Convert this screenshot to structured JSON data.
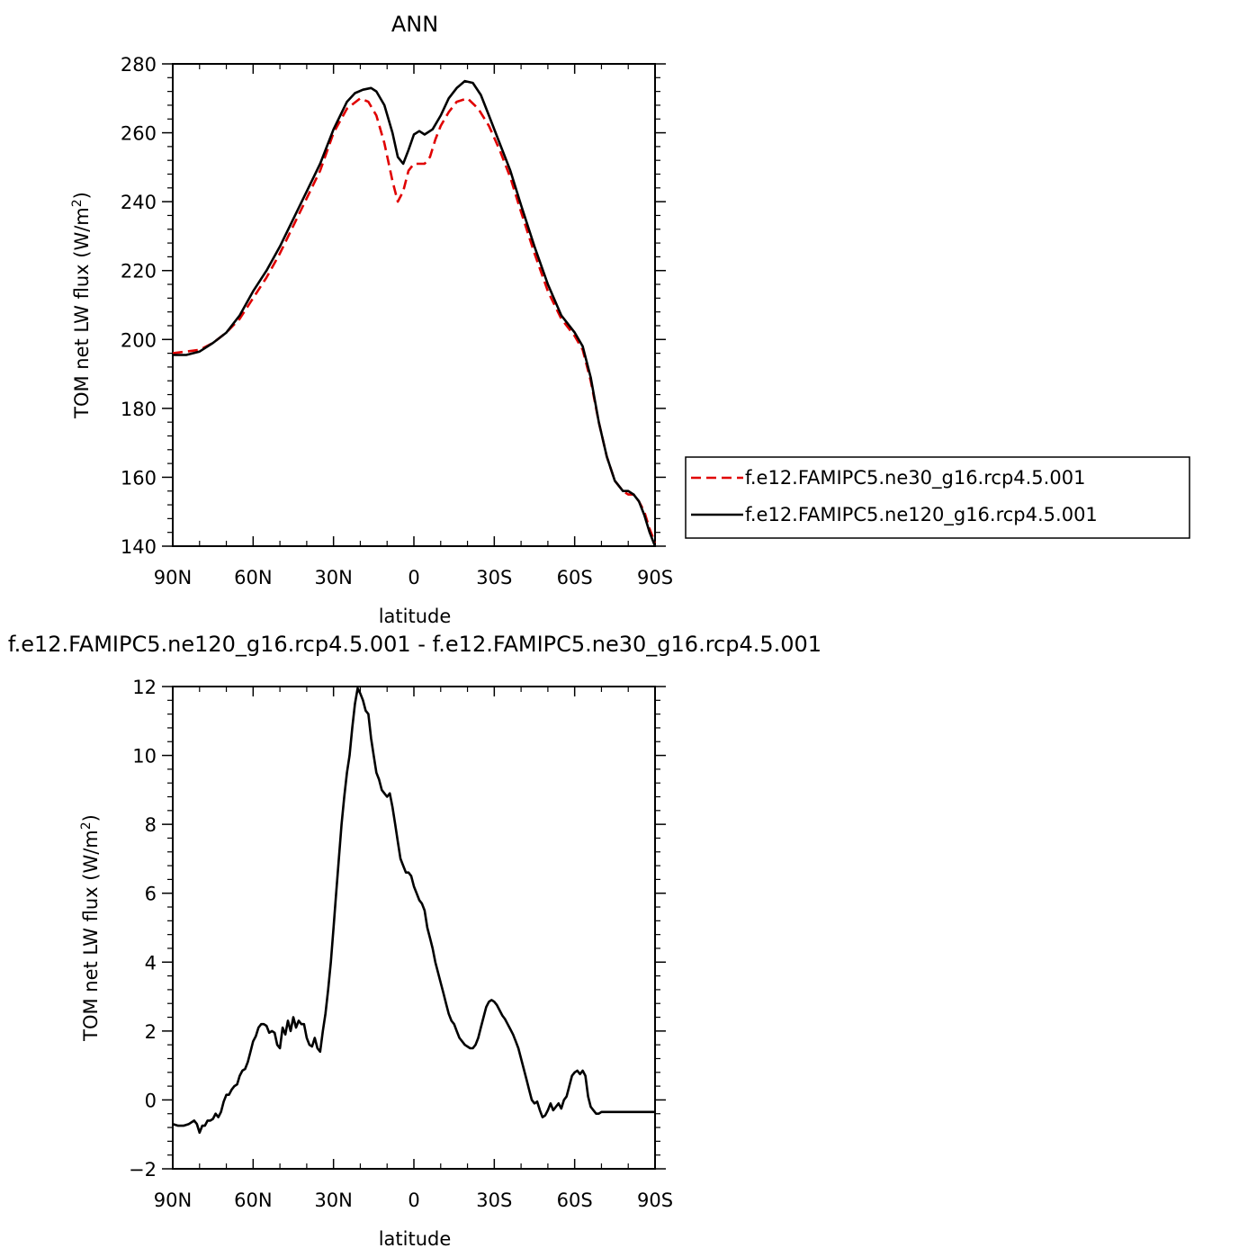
{
  "chart_data": [
    {
      "type": "line",
      "title": "ANN",
      "xlabel": "latitude",
      "ylabel_main": "TOM net LW flux (W/m",
      "ylabel_sup": "2",
      "ylabel_close": ")",
      "xlim": [
        90,
        -90
      ],
      "ylim": [
        140,
        280
      ],
      "x_ticks": [
        90,
        60,
        30,
        0,
        -30,
        -60,
        -90
      ],
      "x_tick_labels": [
        "90N",
        "60N",
        "30N",
        "0",
        "30S",
        "60S",
        "90S"
      ],
      "y_ticks": [
        140,
        160,
        180,
        200,
        220,
        240,
        260,
        280
      ],
      "y_tick_labels": [
        "140",
        "160",
        "180",
        "200",
        "220",
        "240",
        "260",
        "280"
      ],
      "grid": false,
      "legend_position": "right",
      "series": [
        {
          "name": "f.e12.FAMIPC5.ne30_g16.rcp4.5.001",
          "color": "#e00000",
          "dash": "dashed",
          "x": [
            90,
            85,
            80,
            75,
            70,
            65,
            60,
            55,
            50,
            45,
            40,
            35,
            30,
            25,
            20,
            17,
            14,
            11,
            8,
            6,
            4,
            2,
            0,
            -2,
            -4,
            -6,
            -8,
            -10,
            -13,
            -16,
            -20,
            -24,
            -28,
            -32,
            -36,
            -40,
            -45,
            -50,
            -55,
            -60,
            -63,
            -66,
            -69,
            -72,
            -75,
            -78,
            -80,
            -82,
            -84,
            -86,
            -88,
            -90
          ],
          "y": [
            196,
            196.5,
            197,
            199,
            202,
            206,
            212,
            218,
            225,
            233,
            241,
            249,
            260,
            267,
            270,
            269,
            265,
            257,
            246,
            240,
            243,
            249,
            251,
            251,
            251,
            253,
            258,
            262,
            266,
            269,
            270,
            267,
            262,
            255,
            247,
            237,
            225,
            214,
            206,
            201,
            197,
            188,
            176,
            166,
            159,
            156,
            155,
            155,
            153,
            150,
            145,
            141
          ]
        },
        {
          "name": "f.e12.FAMIPC5.ne120_g16.rcp4.5.001",
          "color": "#000000",
          "dash": "solid",
          "x": [
            90,
            85,
            80,
            75,
            70,
            65,
            60,
            55,
            50,
            45,
            40,
            35,
            30,
            25,
            22,
            19,
            16,
            14,
            11,
            8,
            6,
            4,
            2,
            0,
            -2,
            -4,
            -7,
            -10,
            -13,
            -16,
            -19,
            -22,
            -25,
            -28,
            -32,
            -36,
            -40,
            -45,
            -50,
            -55,
            -60,
            -63,
            -66,
            -69,
            -72,
            -75,
            -78,
            -80,
            -82,
            -84,
            -86,
            -88,
            -90
          ],
          "y": [
            195.5,
            195.5,
            196.5,
            199,
            202,
            207,
            214,
            220,
            227,
            235,
            243,
            251,
            261,
            269,
            271.5,
            272.5,
            273,
            272,
            268,
            260,
            253,
            251,
            255,
            259.5,
            260.5,
            259.5,
            261,
            265,
            270,
            273,
            275,
            274.5,
            271,
            265,
            257,
            249,
            239,
            227,
            216,
            207,
            202,
            198,
            189,
            176,
            166,
            159,
            156,
            156,
            155,
            153,
            149,
            144,
            140
          ]
        }
      ]
    },
    {
      "type": "line",
      "title": "f.e12.FAMIPC5.ne120_g16.rcp4.5.001 - f.e12.FAMIPC5.ne30_g16.rcp4.5.001",
      "xlabel": "latitude",
      "ylabel_main": "TOM net LW flux (W/m",
      "ylabel_sup": "2",
      "ylabel_close": ")",
      "xlim": [
        90,
        -90
      ],
      "ylim": [
        -2,
        12
      ],
      "x_ticks": [
        90,
        60,
        30,
        0,
        -30,
        -60,
        -90
      ],
      "x_tick_labels": [
        "90N",
        "60N",
        "30N",
        "0",
        "30S",
        "60S",
        "90S"
      ],
      "y_ticks": [
        -2,
        0,
        2,
        4,
        6,
        8,
        10,
        12
      ],
      "y_tick_labels": [
        "−2",
        "0",
        "2",
        "4",
        "6",
        "8",
        "10",
        "12"
      ],
      "grid": false,
      "series": [
        {
          "color": "#000000",
          "dash": "solid",
          "x": [
            90,
            88,
            86,
            84,
            82,
            81,
            80,
            79,
            78,
            77,
            76,
            75,
            74,
            73,
            72,
            71,
            70,
            69,
            68,
            67,
            66,
            65,
            64,
            63,
            62,
            61,
            60,
            59,
            58,
            57,
            56,
            55,
            54,
            53,
            52,
            51,
            50,
            49,
            48,
            47,
            46,
            45,
            44,
            43,
            42,
            41,
            40,
            39,
            38,
            37,
            36,
            35,
            34,
            33,
            32,
            31,
            30,
            29,
            28,
            27,
            26,
            25,
            24,
            23,
            22,
            21,
            20,
            19,
            18,
            17,
            16,
            15,
            14,
            13,
            12,
            11,
            10,
            9,
            8,
            7,
            6,
            5,
            4,
            3,
            2,
            1,
            0,
            -1,
            -2,
            -3,
            -4,
            -5,
            -6,
            -7,
            -8,
            -9,
            -10,
            -11,
            -12,
            -13,
            -14,
            -15,
            -16,
            -17,
            -18,
            -19,
            -20,
            -21,
            -22,
            -23,
            -24,
            -25,
            -26,
            -27,
            -28,
            -29,
            -30,
            -31,
            -32,
            -33,
            -34,
            -35,
            -36,
            -37,
            -38,
            -39,
            -40,
            -41,
            -42,
            -43,
            -44,
            -45,
            -46,
            -47,
            -48,
            -49,
            -50,
            -51,
            -52,
            -53,
            -54,
            -55,
            -56,
            -57,
            -58,
            -59,
            -60,
            -61,
            -62,
            -63,
            -64,
            -65,
            -66,
            -67,
            -68,
            -69,
            -70,
            -71,
            -72,
            -73,
            -74,
            -75,
            -76,
            -77,
            -78,
            -79,
            -80,
            -81,
            -82,
            -83,
            -84,
            -85,
            -86,
            -87,
            -88,
            -89,
            -90
          ],
          "y": [
            -0.7,
            -0.75,
            -0.75,
            -0.7,
            -0.6,
            -0.7,
            -0.95,
            -0.75,
            -0.75,
            -0.6,
            -0.6,
            -0.55,
            -0.4,
            -0.5,
            -0.35,
            -0.05,
            0.15,
            0.15,
            0.3,
            0.4,
            0.45,
            0.7,
            0.85,
            0.9,
            1.1,
            1.4,
            1.7,
            1.85,
            2.1,
            2.2,
            2.2,
            2.15,
            1.95,
            2.0,
            1.95,
            1.6,
            1.5,
            2.1,
            1.9,
            2.3,
            2.0,
            2.4,
            2.1,
            2.3,
            2.2,
            2.2,
            1.8,
            1.6,
            1.55,
            1.8,
            1.5,
            1.4,
            2.0,
            2.5,
            3.2,
            4.0,
            5.0,
            6.0,
            7.0,
            8.0,
            8.8,
            9.5,
            10.0,
            10.8,
            11.5,
            11.95,
            11.8,
            11.6,
            11.3,
            11.2,
            10.5,
            10.0,
            9.5,
            9.3,
            9.0,
            8.9,
            8.8,
            8.9,
            8.5,
            8.0,
            7.5,
            7.0,
            6.8,
            6.6,
            6.6,
            6.5,
            6.2,
            6.0,
            5.8,
            5.7,
            5.5,
            5.0,
            4.7,
            4.4,
            4.0,
            3.7,
            3.4,
            3.1,
            2.8,
            2.5,
            2.3,
            2.2,
            2.0,
            1.8,
            1.7,
            1.6,
            1.55,
            1.5,
            1.5,
            1.6,
            1.8,
            2.1,
            2.4,
            2.7,
            2.85,
            2.9,
            2.85,
            2.75,
            2.6,
            2.45,
            2.35,
            2.2,
            2.05,
            1.9,
            1.7,
            1.5,
            1.2,
            0.9,
            0.6,
            0.3,
            0.0,
            -0.1,
            -0.05,
            -0.3,
            -0.5,
            -0.45,
            -0.3,
            -0.1,
            -0.3,
            -0.2,
            -0.1,
            -0.25,
            0.0,
            0.1,
            0.4,
            0.7,
            0.8,
            0.85,
            0.75,
            0.85,
            0.7,
            0.1,
            -0.2,
            -0.3,
            -0.4,
            -0.4,
            -0.35,
            -0.35,
            -0.35,
            -0.35,
            -0.35,
            -0.35,
            -0.35,
            -0.35,
            -0.35,
            -0.35,
            -0.35,
            -0.35,
            -0.35,
            -0.35,
            -0.35,
            -0.35,
            -0.35,
            -0.35,
            -0.35,
            -0.35,
            -0.35
          ]
        }
      ]
    }
  ]
}
